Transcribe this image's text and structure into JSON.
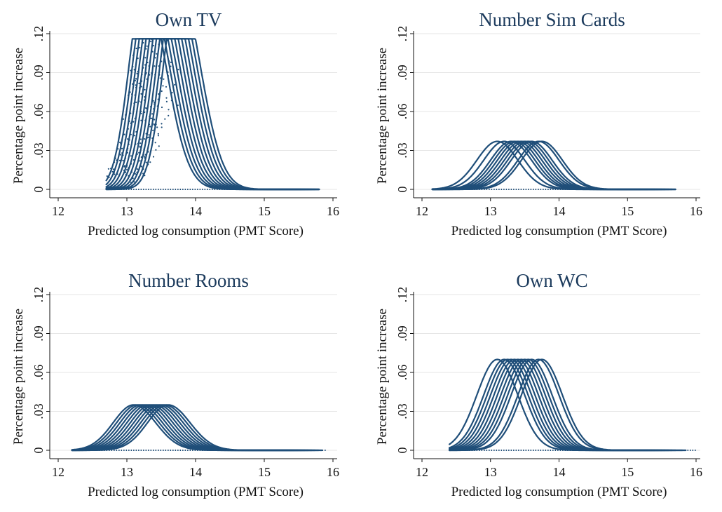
{
  "colors": {
    "series": "#1f4e79",
    "title": "#1b3a5c",
    "axis": "#111111",
    "grid": "#e6e6e6"
  },
  "chart_data": [
    {
      "type": "scatter",
      "title": "Own TV",
      "xlabel": "Predicted log consumption (PMT Score)",
      "ylabel": "Percentage point increase",
      "xlim": [
        12,
        16
      ],
      "ylim": [
        0,
        0.12
      ],
      "xticks": [
        "12",
        "13",
        "14",
        "15",
        "16"
      ],
      "yticks": [
        "0",
        ".03",
        ".06",
        ".09",
        ".12"
      ],
      "grid": true,
      "legend": "none",
      "curves": {
        "peak": 0.116,
        "centers": [
          13.25,
          13.3,
          13.35,
          13.4,
          13.45,
          13.5,
          13.55,
          13.6,
          13.65,
          13.7,
          13.75
        ],
        "rise_width": 0.22,
        "fall_width": 0.32,
        "x_range": [
          12.7,
          15.8
        ],
        "capped_at_peak": true
      }
    },
    {
      "type": "scatter",
      "title": "Number Sim Cards",
      "xlabel": "Predicted log consumption (PMT Score)",
      "ylabel": "Percentage point increase",
      "xlim": [
        12,
        16
      ],
      "ylim": [
        0,
        0.12
      ],
      "xticks": [
        "12",
        "13",
        "14",
        "15",
        "16"
      ],
      "yticks": [
        "0",
        ".03",
        ".06",
        ".09",
        ".12"
      ],
      "grid": true,
      "legend": "none",
      "curves": {
        "peak": 0.037,
        "centers": [
          13.1,
          13.2,
          13.3,
          13.35,
          13.4,
          13.45,
          13.5,
          13.55,
          13.6,
          13.7,
          13.75
        ],
        "rise_width": 0.3,
        "fall_width": 0.3,
        "x_range": [
          12.15,
          15.7
        ],
        "capped_at_peak": false
      }
    },
    {
      "type": "scatter",
      "title": "Number Rooms",
      "xlabel": "Predicted log consumption (PMT Score)",
      "ylabel": "Percentage point increase",
      "xlim": [
        12,
        16
      ],
      "ylim": [
        0,
        0.12
      ],
      "xticks": [
        "12",
        "13",
        "14",
        "15",
        "16"
      ],
      "yticks": [
        "0",
        ".03",
        ".06",
        ".09",
        ".12"
      ],
      "grid": true,
      "legend": "none",
      "curves": {
        "peak": 0.035,
        "centers": [
          13.1,
          13.15,
          13.2,
          13.25,
          13.3,
          13.35,
          13.4,
          13.45,
          13.5,
          13.55,
          13.6
        ],
        "rise_width": 0.3,
        "fall_width": 0.32,
        "x_range": [
          12.2,
          15.9
        ],
        "capped_at_peak": false
      }
    },
    {
      "type": "scatter",
      "title": "Own WC",
      "xlabel": "Predicted log consumption (PMT Score)",
      "ylabel": "Percentage point increase",
      "xlim": [
        12,
        16
      ],
      "ylim": [
        0,
        0.12
      ],
      "xticks": [
        "12",
        "13",
        "14",
        "15",
        "16"
      ],
      "yticks": [
        "0",
        ".03",
        ".06",
        ".09",
        ".12"
      ],
      "grid": true,
      "legend": "none",
      "curves": {
        "peak": 0.07,
        "centers": [
          13.1,
          13.2,
          13.25,
          13.3,
          13.35,
          13.4,
          13.45,
          13.5,
          13.55,
          13.6,
          13.7,
          13.75
        ],
        "rise_width": 0.3,
        "fall_width": 0.3,
        "x_range": [
          12.4,
          16.0
        ],
        "capped_at_peak": false
      }
    }
  ]
}
